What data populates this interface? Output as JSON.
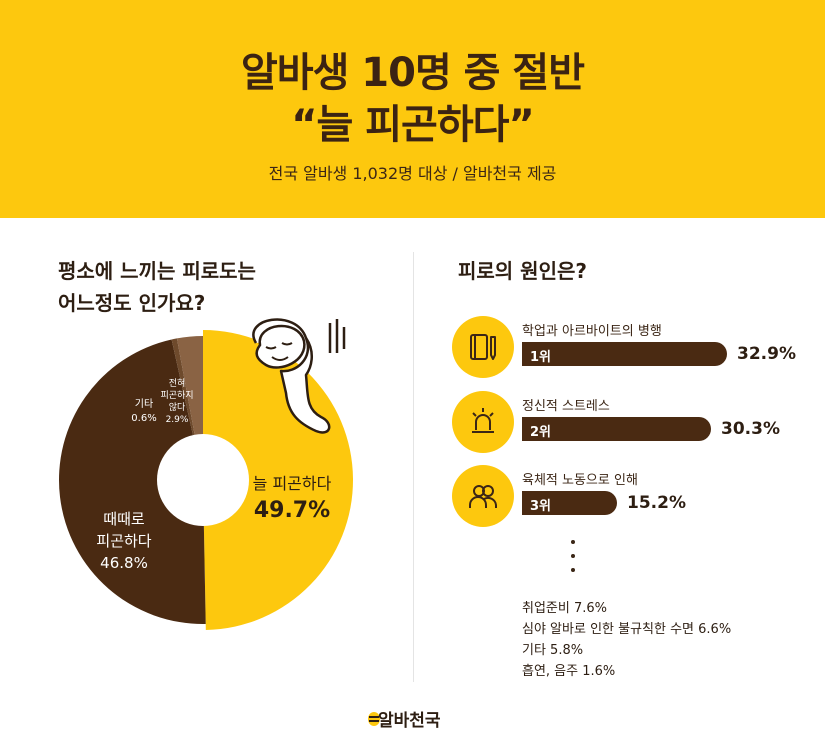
{
  "header": {
    "title_line1": "알바생 10명 중 절반",
    "title_line2": "“늘 피곤하다”",
    "subtitle": "전국 알바생 1,032명 대상 / 알바천국 제공"
  },
  "left": {
    "question_line1": "평소에 느끼는 피로도는",
    "question_line2": "어느정도 인가요?"
  },
  "right": {
    "question": "피로의 원인은?"
  },
  "chart_data": [
    {
      "type": "pie",
      "variant": "donut",
      "categories": [
        "늘 피곤하다",
        "때때로 피곤하다",
        "기타",
        "전혀 피곤하지 않다"
      ],
      "values": [
        49.7,
        46.8,
        0.6,
        2.9
      ],
      "colors": [
        "#fdc80e",
        "#4a2a12",
        "#6e4a2c",
        "#8a6344"
      ],
      "labels": {
        "always_name": "늘 피곤하다",
        "always_pct": "49.7%",
        "sometimes_line1": "때때로",
        "sometimes_line2": "피곤하다",
        "sometimes_pct": "46.8%",
        "etc_name": "기타",
        "etc_pct": "0.6%",
        "never_line1": "전혀",
        "never_line2": "피곤하지",
        "never_line3": "않다",
        "never_pct": "2.9%"
      }
    },
    {
      "type": "bar",
      "orientation": "horizontal",
      "categories": [
        "학업과 아르바이트의 병행",
        "정신적 스트레스",
        "육체적 노동으로 인해"
      ],
      "ranks": [
        "1위",
        "2위",
        "3위"
      ],
      "values": [
        32.9,
        30.3,
        15.2
      ],
      "value_labels": [
        "32.9%",
        "30.3%",
        "15.2%"
      ],
      "icons": [
        "notebook-pen-icon",
        "siren-icon",
        "people-icon"
      ],
      "bar_color": "#4a2a12"
    }
  ],
  "others": [
    "취업준비 7.6%",
    "심야 알바로 인한 불규칙한 수면 6.6%",
    "기타 5.8%",
    "흡연, 음주 1.6%"
  ],
  "logo": {
    "text": "알바천국"
  }
}
